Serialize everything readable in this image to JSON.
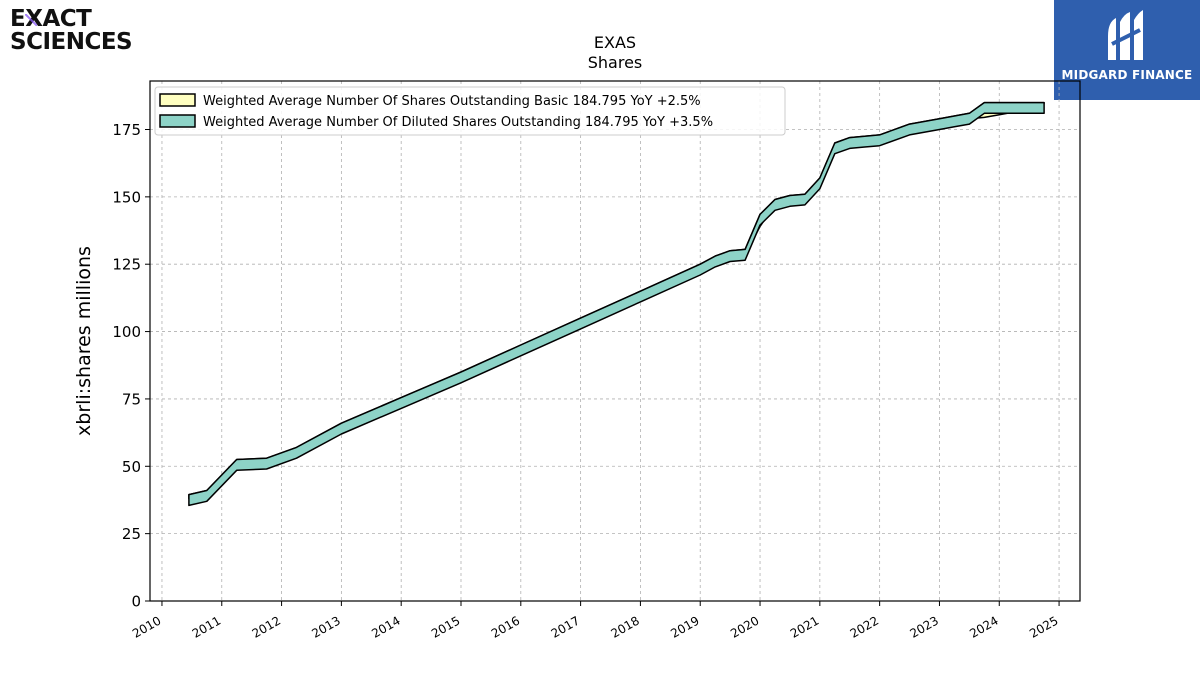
{
  "logo": {
    "line1": "EXACT",
    "line2": "SCIENCES",
    "accent_color": "#8b5cf6"
  },
  "badge": {
    "text": "MIDGARD FINANCE",
    "icon": "midgard-logo-icon",
    "color": "#2f5fae"
  },
  "chart_data": {
    "type": "area",
    "title": "EXAS",
    "subtitle": "Shares",
    "xlabel": "",
    "ylabel": "xbrli:shares millions",
    "xlim": [
      2009.8,
      2025.35
    ],
    "ylim": [
      0,
      193
    ],
    "x_ticks": [
      "2010",
      "2011",
      "2012",
      "2013",
      "2014",
      "2015",
      "2016",
      "2017",
      "2018",
      "2019",
      "2020",
      "2021",
      "2022",
      "2023",
      "2024",
      "2025"
    ],
    "y_ticks": [
      "0",
      "25",
      "50",
      "75",
      "100",
      "125",
      "150",
      "175"
    ],
    "grid": true,
    "legend_position": "top-left",
    "series": [
      {
        "name": "Weighted Average Number Of Shares Outstanding Basic",
        "legend_label": "Weighted Average Number Of Shares Outstanding Basic  184.795 YoY +2.5%",
        "fill": "#ffffc0",
        "x": [
          2010.45,
          2010.75,
          2011.25,
          2011.75,
          2012.25,
          2013.0,
          2014.0,
          2015.0,
          2016.0,
          2017.0,
          2018.0,
          2019.0,
          2019.25,
          2019.5,
          2019.75,
          2020.0,
          2020.25,
          2020.5,
          2020.75,
          2021.0,
          2021.25,
          2021.5,
          2021.75,
          2022.0,
          2022.5,
          2023.0,
          2023.25,
          2023.5,
          2023.75,
          2024.0,
          2024.25,
          2024.5,
          2024.75
        ],
        "values": [
          38,
          39,
          50.5,
          51,
          55,
          64,
          73.5,
          83,
          93,
          103,
          113,
          123,
          126,
          128,
          128.5,
          139,
          147,
          148.5,
          149,
          155,
          168.5,
          170,
          170.5,
          171,
          175,
          177,
          178.5,
          179,
          179.5,
          180.5,
          181.5,
          183.5,
          184.795
        ]
      },
      {
        "name": "Weighted Average Number Of Diluted Shares Outstanding",
        "legend_label": "Weighted Average Number Of Diluted Shares Outstanding  184.795 YoY +3.5%",
        "fill": "#8dd3c7",
        "x": [
          2010.45,
          2010.75,
          2011.25,
          2011.75,
          2012.25,
          2013.0,
          2014.0,
          2015.0,
          2016.0,
          2017.0,
          2018.0,
          2019.0,
          2019.25,
          2019.5,
          2019.75,
          2020.0,
          2020.25,
          2020.5,
          2020.75,
          2021.0,
          2021.25,
          2021.5,
          2021.75,
          2022.0,
          2022.5,
          2023.0,
          2023.25,
          2023.5,
          2023.75,
          2024.0,
          2024.25,
          2024.5,
          2024.75
        ],
        "values": [
          39.5,
          41,
          52.5,
          53,
          57,
          66,
          75.5,
          85,
          95,
          105,
          115,
          125,
          128,
          130,
          130.5,
          143.5,
          149,
          150.5,
          151,
          157,
          170,
          172,
          172.5,
          173,
          177,
          179,
          180,
          181,
          185,
          185,
          185,
          185,
          185
        ]
      }
    ]
  }
}
